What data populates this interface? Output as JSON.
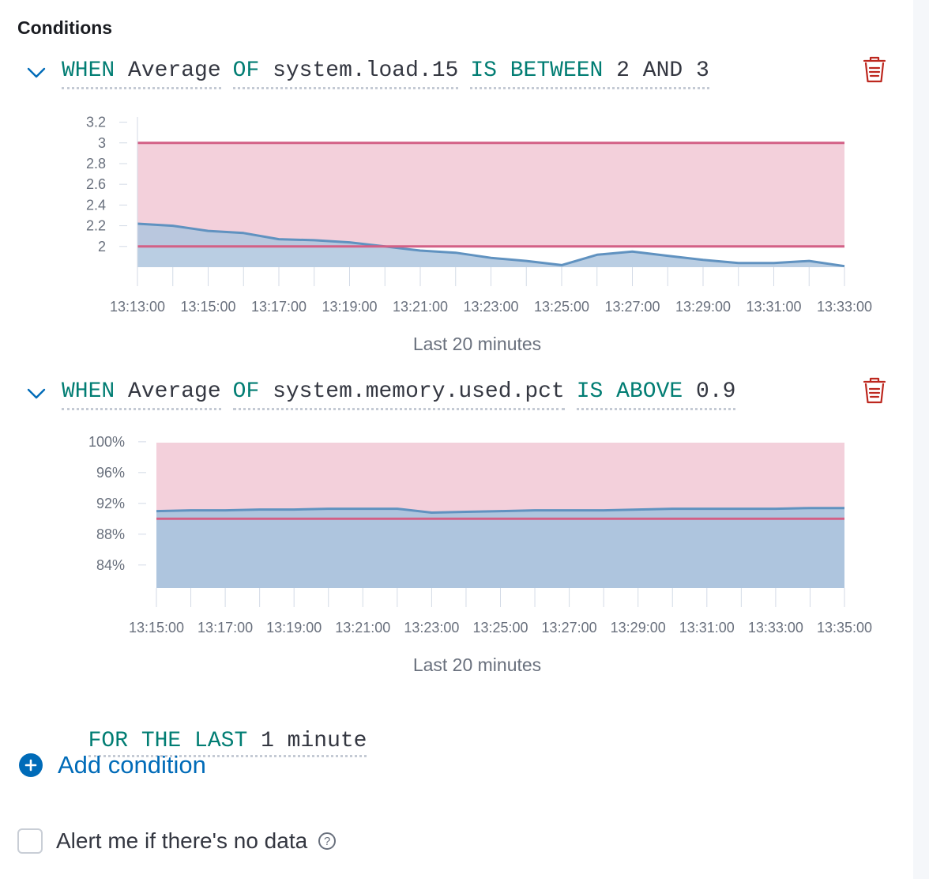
{
  "section_title": "Conditions",
  "conditions": [
    {
      "tokens": [
        {
          "kw": "WHEN",
          "val": "Average"
        },
        {
          "kw": "OF",
          "val": "system.load.15"
        },
        {
          "kw": "IS BETWEEN",
          "val": "2 AND 3"
        }
      ],
      "chart_title": "Last 20 minutes"
    },
    {
      "tokens": [
        {
          "kw": "WHEN",
          "val": "Average"
        },
        {
          "kw": "OF",
          "val": "system.memory.used.pct"
        },
        {
          "kw": "IS ABOVE",
          "val": "0.9"
        }
      ],
      "chart_title": "Last 20 minutes"
    }
  ],
  "for_the_last": {
    "kw": "FOR THE LAST",
    "val": "1 minute"
  },
  "add_condition_label": "Add condition",
  "no_data_label": "Alert me if there's no data",
  "help_glyph": "?",
  "colors": {
    "keyword": "#017d73",
    "link": "#006bb8",
    "delete": "#bd271e",
    "series": "#6092c0",
    "series_fill": "#aec5de",
    "threshold": "#d36086",
    "threshold_fill": "#f3d0db"
  },
  "icons": [
    "chevron-down-icon",
    "trash-icon",
    "plus-circle-icon",
    "question-circle-icon"
  ],
  "chart_data": [
    {
      "type": "area",
      "title": "Last 20 minutes",
      "x": [
        "13:13:00",
        "13:14:00",
        "13:15:00",
        "13:16:00",
        "13:17:00",
        "13:18:00",
        "13:19:00",
        "13:20:00",
        "13:21:00",
        "13:22:00",
        "13:23:00",
        "13:24:00",
        "13:25:00",
        "13:26:00",
        "13:27:00",
        "13:28:00",
        "13:29:00",
        "13:30:00",
        "13:31:00",
        "13:32:00",
        "13:33:00"
      ],
      "x_ticks": [
        "13:13:00",
        "13:15:00",
        "13:17:00",
        "13:19:00",
        "13:21:00",
        "13:23:00",
        "13:25:00",
        "13:27:00",
        "13:29:00",
        "13:31:00",
        "13:33:00"
      ],
      "series": [
        {
          "values": [
            2.22,
            2.2,
            2.15,
            2.13,
            2.07,
            2.06,
            2.04,
            2.0,
            1.96,
            1.94,
            1.89,
            1.86,
            1.82,
            1.92,
            1.95,
            1.91,
            1.87,
            1.84,
            1.84,
            1.86,
            1.81
          ]
        }
      ],
      "threshold": {
        "type": "between",
        "lower": 2,
        "upper": 3
      },
      "y_ticks": [
        2,
        2.2,
        2.4,
        2.6,
        2.8,
        3,
        3.2
      ],
      "ylim": [
        1.8,
        3.25
      ],
      "grid": false
    },
    {
      "type": "area",
      "title": "Last 20 minutes",
      "x": [
        "13:15:00",
        "13:16:00",
        "13:17:00",
        "13:18:00",
        "13:19:00",
        "13:20:00",
        "13:21:00",
        "13:22:00",
        "13:23:00",
        "13:24:00",
        "13:25:00",
        "13:26:00",
        "13:27:00",
        "13:28:00",
        "13:29:00",
        "13:30:00",
        "13:31:00",
        "13:32:00",
        "13:33:00",
        "13:34:00",
        "13:35:00"
      ],
      "x_ticks": [
        "13:15:00",
        "13:17:00",
        "13:19:00",
        "13:21:00",
        "13:23:00",
        "13:25:00",
        "13:27:00",
        "13:29:00",
        "13:31:00",
        "13:33:00",
        "13:35:00"
      ],
      "series": [
        {
          "values": [
            91.0,
            91.1,
            91.1,
            91.2,
            91.2,
            91.3,
            91.3,
            91.3,
            90.8,
            90.9,
            91.0,
            91.1,
            91.1,
            91.1,
            91.2,
            91.3,
            91.3,
            91.3,
            91.3,
            91.4,
            91.4
          ]
        }
      ],
      "threshold": {
        "type": "above",
        "value": 90
      },
      "y_ticks": [
        "84%",
        "88%",
        "92%",
        "96%",
        "100%"
      ],
      "y_tick_values": [
        84,
        88,
        92,
        96,
        100
      ],
      "ylim": [
        81,
        100.5
      ],
      "grid": false
    }
  ]
}
